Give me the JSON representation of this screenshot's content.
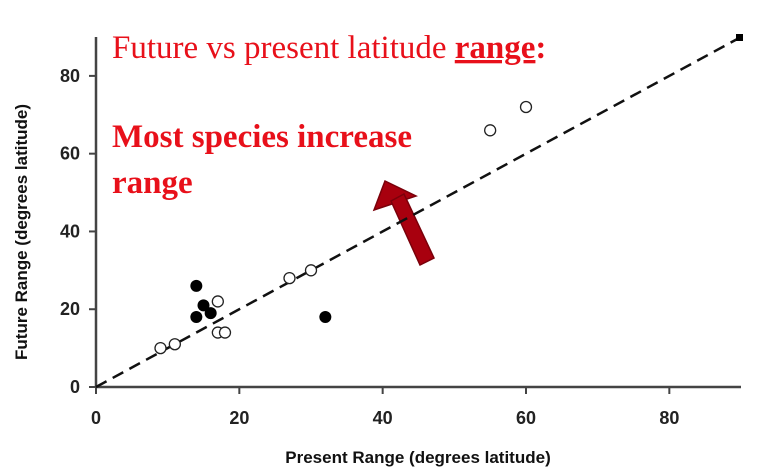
{
  "chart_data": {
    "type": "scatter",
    "title": {
      "main": "Future vs present latitude ",
      "emphasis": "range",
      "suffix": ":"
    },
    "annotation": {
      "line1": "Most species increase",
      "line2": "range"
    },
    "xlabel": "Present Range (degrees latitude)",
    "ylabel": "Future  Range (degrees latitude)",
    "xlim": [
      0,
      90
    ],
    "ylim": [
      0,
      90
    ],
    "xticks": [
      "0",
      "20",
      "40",
      "60",
      "80"
    ],
    "yticks": [
      "0",
      "20",
      "40",
      "60",
      "80"
    ],
    "grid": false,
    "reference_line": {
      "style": "dashed",
      "from": [
        0,
        0
      ],
      "to": [
        90,
        90
      ]
    },
    "colors": {
      "text": "#e8101a",
      "arrow": "#a8000e",
      "points": "#000000"
    },
    "series": [
      {
        "marker": "filled",
        "points": [
          {
            "x": 14,
            "y": 26
          },
          {
            "x": 15,
            "y": 21
          },
          {
            "x": 14,
            "y": 18
          },
          {
            "x": 16,
            "y": 19
          },
          {
            "x": 32,
            "y": 18
          },
          {
            "x": 90,
            "y": 90
          }
        ]
      },
      {
        "marker": "open",
        "points": [
          {
            "x": 9,
            "y": 10
          },
          {
            "x": 11,
            "y": 11
          },
          {
            "x": 17,
            "y": 22
          },
          {
            "x": 17,
            "y": 14
          },
          {
            "x": 18,
            "y": 14
          },
          {
            "x": 27,
            "y": 28
          },
          {
            "x": 30,
            "y": 30
          },
          {
            "x": 55,
            "y": 66
          },
          {
            "x": 60,
            "y": 72
          }
        ]
      }
    ]
  }
}
